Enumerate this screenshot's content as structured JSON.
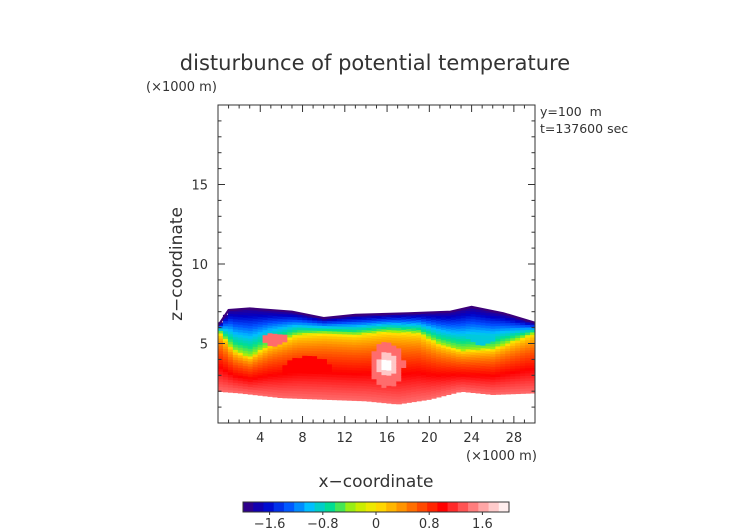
{
  "chart_data": {
    "type": "heatmap",
    "title": "disturbunce of potential temperature",
    "top_unit": "(×1000 m)",
    "xlabel": "x−coordinate",
    "ylabel": "z−coordinate",
    "x_unit": "(×1000 m)",
    "annotations": [
      "y=100  m",
      "t=137600 sec"
    ],
    "xlim": [
      0,
      30
    ],
    "ylim": [
      0,
      20
    ],
    "x_ticks": [
      4,
      8,
      12,
      16,
      20,
      24,
      28
    ],
    "y_ticks": [
      5,
      10,
      15
    ],
    "colorbar": {
      "range": [
        -2.0,
        2.0
      ],
      "ticks": [
        "−1.6",
        "−0.8",
        "0",
        "0.8",
        "1.6"
      ],
      "tick_values": [
        -1.6,
        -0.8,
        0,
        0.8,
        1.6
      ],
      "colors": [
        "#3c007a",
        "#0000c8",
        "#0050ff",
        "#00bfff",
        "#00e08a",
        "#b4f000",
        "#ffe600",
        "#ffa000",
        "#ff5000",
        "#ff0000",
        "#ff5a5a",
        "#ffb4b4",
        "#ffffff"
      ]
    },
    "field": {
      "top_boundary": [
        [
          0,
          6.1
        ],
        [
          1,
          7.1
        ],
        [
          3,
          7.2
        ],
        [
          7,
          7.0
        ],
        [
          10,
          6.6
        ],
        [
          13,
          6.8
        ],
        [
          18,
          6.9
        ],
        [
          22,
          7.0
        ],
        [
          24,
          7.3
        ],
        [
          27,
          6.9
        ],
        [
          30,
          6.3
        ]
      ],
      "bottom_boundary": [
        [
          0,
          2.0
        ],
        [
          2,
          1.9
        ],
        [
          6,
          1.6
        ],
        [
          10,
          1.5
        ],
        [
          14,
          1.4
        ],
        [
          17,
          1.2
        ],
        [
          20,
          1.5
        ],
        [
          23,
          2.0
        ],
        [
          26,
          1.8
        ],
        [
          30,
          1.9
        ]
      ],
      "blue_lower_edge": [
        [
          0,
          5.9
        ],
        [
          1.5,
          4.6
        ],
        [
          3,
          4.2
        ],
        [
          5,
          5.0
        ],
        [
          7.5,
          5.6
        ],
        [
          10,
          5.7
        ],
        [
          13,
          5.6
        ],
        [
          16,
          5.8
        ],
        [
          19,
          5.7
        ],
        [
          21,
          5.0
        ],
        [
          23,
          4.6
        ],
        [
          26,
          4.7
        ],
        [
          28,
          5.2
        ],
        [
          30,
          5.7
        ]
      ],
      "blobs": [
        {
          "x": 16,
          "z": 3.7,
          "rx": 1.6,
          "rz": 1.4,
          "value": 1.4
        },
        {
          "x": 16,
          "z": 3.7,
          "rx": 0.9,
          "rz": 0.75,
          "value": 1.75
        },
        {
          "x": 16,
          "z": 3.7,
          "rx": 0.45,
          "rz": 0.35,
          "value": 2.0
        },
        {
          "x": 25,
          "z": 5.7,
          "rx": 1.5,
          "rz": 0.8,
          "value": -0.9
        },
        {
          "x": 5.4,
          "z": 5.3,
          "rx": 1.2,
          "rz": 0.4,
          "value": 1.4
        },
        {
          "x": 8.5,
          "z": 3.4,
          "rx": 2.3,
          "rz": 0.8,
          "value": 1.0
        }
      ]
    }
  }
}
